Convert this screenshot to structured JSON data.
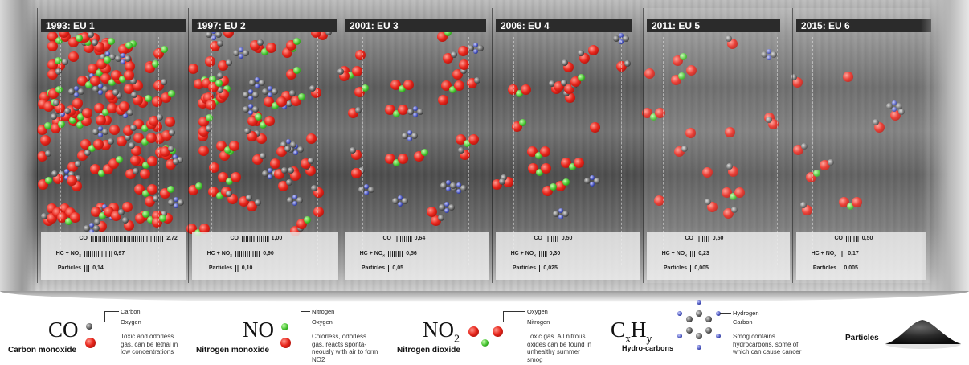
{
  "panels": [
    {
      "title": "1993: EU 1",
      "co": "2,72",
      "hcnox": "0,97",
      "particles": "0,14",
      "co_bars": 38,
      "hc_bars": 14,
      "p_bars": 3
    },
    {
      "title": "1997: EU 2",
      "co": "1,00",
      "hcnox": "0,90",
      "particles": "0,10",
      "co_bars": 14,
      "hc_bars": 13,
      "p_bars": 2
    },
    {
      "title": "2001: EU 3",
      "co": "0,64",
      "hcnox": "0,56",
      "particles": "0,05",
      "co_bars": 9,
      "hc_bars": 8,
      "p_bars": 1
    },
    {
      "title": "2006: EU 4",
      "co": "0,50",
      "hcnox": "0,30",
      "particles": "0,025",
      "co_bars": 7,
      "hc_bars": 4,
      "p_bars": 1
    },
    {
      "title": "2011: EU 5",
      "co": "0,50",
      "hcnox": "0,23",
      "particles": "0,005",
      "co_bars": 7,
      "hc_bars": 3,
      "p_bars": 1
    },
    {
      "title": "2015: EU 6",
      "co": "0,50",
      "hcnox": "0,17",
      "particles": "0,005",
      "co_bars": 7,
      "hc_bars": 3,
      "p_bars": 1
    }
  ],
  "stat_labels": {
    "co": "CO",
    "hcnox": "HC + NO",
    "nox_sub": "x",
    "particles": "Particles"
  },
  "legend": {
    "co": {
      "formula": "CO",
      "name": "Carbon monoxide",
      "label1": "Carbon",
      "label2": "Oxygen",
      "desc": "Toxic and odorless gas, can be lethal in low concentrations"
    },
    "no": {
      "formula": "NO",
      "name": "Nitrogen monoxide",
      "label1": "Nitrogen",
      "label2": "Oxygen",
      "desc": "Colorless, odorless gas, reacts sponta-neously with air to form NO2"
    },
    "no2": {
      "formula": "NO",
      "formula_sub": "2",
      "name": "Nitrogen dioxide",
      "label1": "Oxygen",
      "label2": "Nitrogen",
      "desc": "Toxic gas. All nitrous oxides can be found in unhealthy summer smog"
    },
    "hc": {
      "formula_c": "C",
      "formula_x": "x",
      "formula_h": "H",
      "formula_y": "y",
      "name": "Hydro-carbons",
      "label1": "Hydrogen",
      "label2": "Carbon",
      "desc": "Smog contains hydrocarbons, some of which can cause cancer"
    },
    "particles": {
      "name": "Particles"
    }
  },
  "colors": {
    "oxygen": "#e8261c",
    "carbon": "#505050",
    "nitrogen": "#3fbf2a",
    "hydrogen": "#3b48b4",
    "title_bar": "#2b2b2b"
  }
}
